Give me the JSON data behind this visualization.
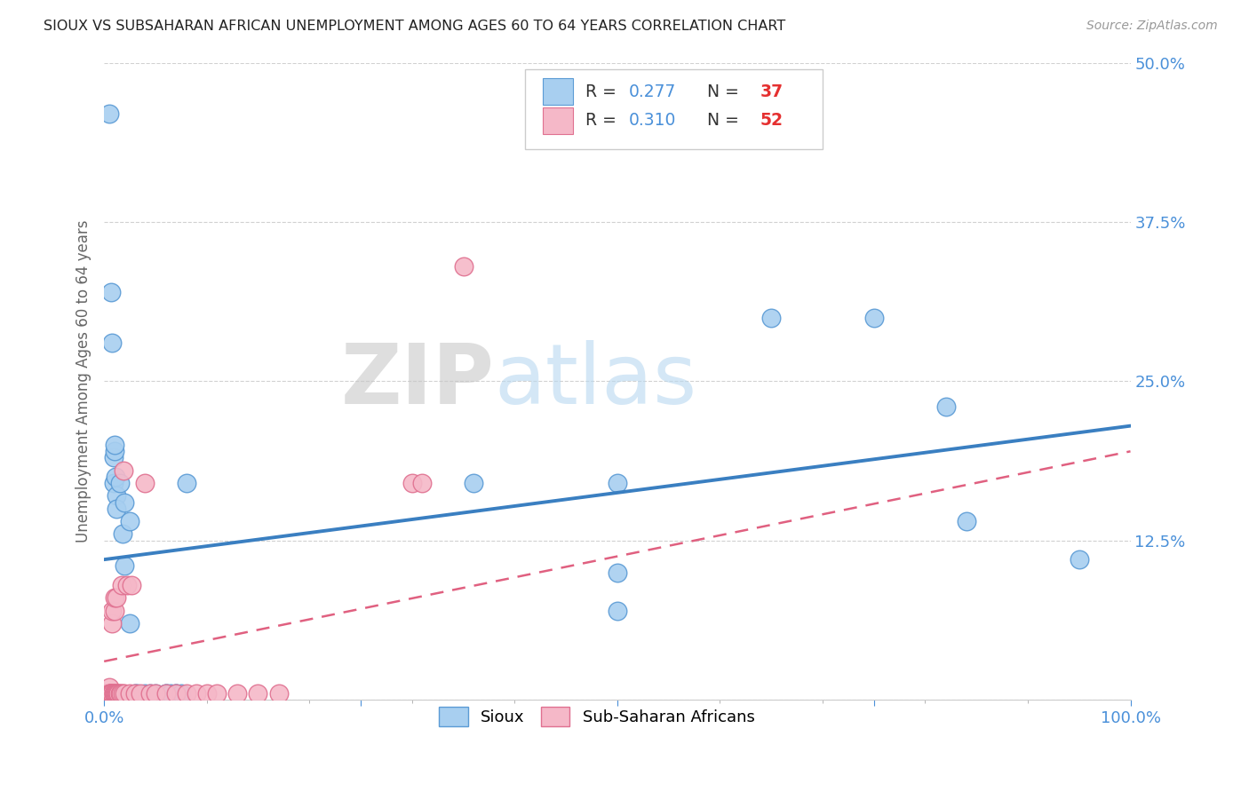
{
  "title": "SIOUX VS SUBSAHARAN AFRICAN UNEMPLOYMENT AMONG AGES 60 TO 64 YEARS CORRELATION CHART",
  "source": "Source: ZipAtlas.com",
  "ylabel": "Unemployment Among Ages 60 to 64 years",
  "xlim": [
    0,
    1.0
  ],
  "ylim": [
    0,
    0.5
  ],
  "xticks": [
    0.0,
    0.25,
    0.5,
    0.75,
    1.0
  ],
  "xtick_labels": [
    "0.0%",
    "",
    "",
    "",
    "100.0%"
  ],
  "yticks": [
    0.0,
    0.125,
    0.25,
    0.375,
    0.5
  ],
  "ytick_labels": [
    "",
    "12.5%",
    "25.0%",
    "37.5%",
    "50.0%"
  ],
  "background_color": "#ffffff",
  "sioux_color": "#a8cff0",
  "subsaharan_color": "#f5b8c8",
  "sioux_edge_color": "#5b9bd5",
  "subsaharan_edge_color": "#e07090",
  "sioux_line_color": "#3a7fc1",
  "subsaharan_line_color": "#e06080",
  "sioux_points": [
    [
      0.005,
      0.46
    ],
    [
      0.007,
      0.32
    ],
    [
      0.008,
      0.28
    ],
    [
      0.009,
      0.17
    ],
    [
      0.009,
      0.19
    ],
    [
      0.01,
      0.195
    ],
    [
      0.01,
      0.2
    ],
    [
      0.011,
      0.175
    ],
    [
      0.012,
      0.16
    ],
    [
      0.012,
      0.15
    ],
    [
      0.015,
      0.17
    ],
    [
      0.018,
      0.13
    ],
    [
      0.02,
      0.155
    ],
    [
      0.02,
      0.105
    ],
    [
      0.025,
      0.14
    ],
    [
      0.025,
      0.06
    ],
    [
      0.03,
      0.005
    ],
    [
      0.032,
      0.005
    ],
    [
      0.04,
      0.005
    ],
    [
      0.045,
      0.005
    ],
    [
      0.05,
      0.005
    ],
    [
      0.06,
      0.005
    ],
    [
      0.06,
      0.005
    ],
    [
      0.065,
      0.005
    ],
    [
      0.07,
      0.005
    ],
    [
      0.07,
      0.005
    ],
    [
      0.075,
      0.005
    ],
    [
      0.08,
      0.17
    ],
    [
      0.36,
      0.17
    ],
    [
      0.5,
      0.17
    ],
    [
      0.5,
      0.1
    ],
    [
      0.5,
      0.07
    ],
    [
      0.65,
      0.3
    ],
    [
      0.75,
      0.3
    ],
    [
      0.82,
      0.23
    ],
    [
      0.84,
      0.14
    ],
    [
      0.95,
      0.11
    ]
  ],
  "subsaharan_points": [
    [
      0.002,
      0.005
    ],
    [
      0.003,
      0.005
    ],
    [
      0.003,
      0.005
    ],
    [
      0.004,
      0.005
    ],
    [
      0.004,
      0.005
    ],
    [
      0.005,
      0.005
    ],
    [
      0.005,
      0.01
    ],
    [
      0.005,
      0.005
    ],
    [
      0.006,
      0.005
    ],
    [
      0.006,
      0.005
    ],
    [
      0.006,
      0.005
    ],
    [
      0.007,
      0.005
    ],
    [
      0.007,
      0.005
    ],
    [
      0.008,
      0.005
    ],
    [
      0.008,
      0.06
    ],
    [
      0.008,
      0.07
    ],
    [
      0.009,
      0.005
    ],
    [
      0.009,
      0.005
    ],
    [
      0.01,
      0.07
    ],
    [
      0.01,
      0.08
    ],
    [
      0.01,
      0.005
    ],
    [
      0.011,
      0.005
    ],
    [
      0.012,
      0.08
    ],
    [
      0.012,
      0.005
    ],
    [
      0.013,
      0.005
    ],
    [
      0.014,
      0.005
    ],
    [
      0.015,
      0.005
    ],
    [
      0.016,
      0.005
    ],
    [
      0.017,
      0.09
    ],
    [
      0.018,
      0.005
    ],
    [
      0.019,
      0.18
    ],
    [
      0.02,
      0.005
    ],
    [
      0.022,
      0.09
    ],
    [
      0.025,
      0.005
    ],
    [
      0.027,
      0.09
    ],
    [
      0.03,
      0.005
    ],
    [
      0.035,
      0.005
    ],
    [
      0.04,
      0.17
    ],
    [
      0.045,
      0.005
    ],
    [
      0.05,
      0.005
    ],
    [
      0.06,
      0.005
    ],
    [
      0.07,
      0.005
    ],
    [
      0.08,
      0.005
    ],
    [
      0.09,
      0.005
    ],
    [
      0.1,
      0.005
    ],
    [
      0.11,
      0.005
    ],
    [
      0.13,
      0.005
    ],
    [
      0.15,
      0.005
    ],
    [
      0.17,
      0.005
    ],
    [
      0.3,
      0.17
    ],
    [
      0.31,
      0.17
    ],
    [
      0.35,
      0.34
    ]
  ],
  "sioux_line": {
    "x0": 0.0,
    "y0": 0.11,
    "x1": 1.0,
    "y1": 0.215
  },
  "subsaharan_line": {
    "x0": 0.0,
    "y0": 0.03,
    "x1": 1.0,
    "y1": 0.195
  }
}
